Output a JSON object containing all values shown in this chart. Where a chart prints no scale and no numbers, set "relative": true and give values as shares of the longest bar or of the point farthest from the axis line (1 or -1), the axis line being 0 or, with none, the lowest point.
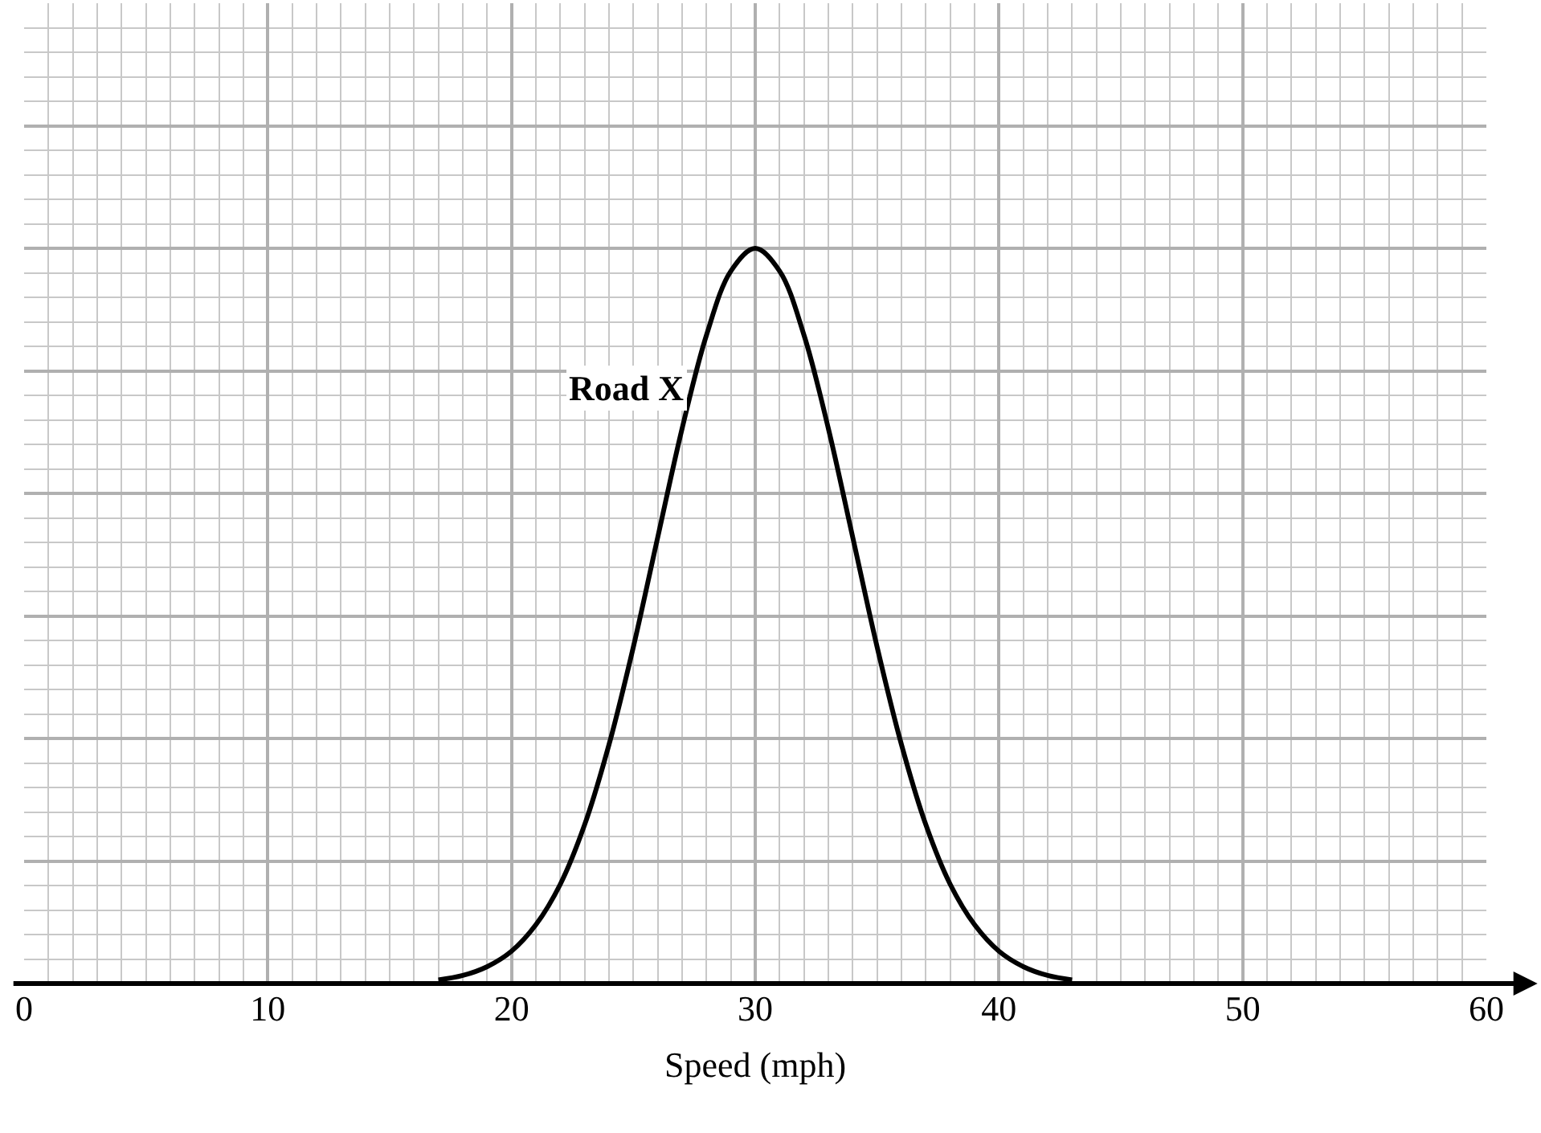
{
  "chart_data": {
    "type": "line",
    "relative": true,
    "xlabel": "Speed (mph)",
    "x": [
      17,
      18,
      19,
      20,
      21,
      22,
      23,
      24,
      25,
      26,
      27,
      28,
      29,
      30,
      31,
      32,
      33,
      34,
      35,
      36,
      37,
      38,
      39,
      40,
      41,
      42,
      43
    ],
    "xlim": [
      0,
      60
    ],
    "xticks": [
      0,
      10,
      20,
      30,
      40,
      50,
      60
    ],
    "grid": true,
    "marker": "none",
    "line_style": "solid",
    "series": [
      {
        "name": "Road X",
        "color": "#000000",
        "values": [
          0.005,
          0.011,
          0.023,
          0.044,
          0.08,
          0.135,
          0.216,
          0.325,
          0.458,
          0.607,
          0.755,
          0.882,
          0.969,
          1,
          0.969,
          0.882,
          0.755,
          0.607,
          0.458,
          0.325,
          0.216,
          0.135,
          0.08,
          0.044,
          0.023,
          0.011,
          0.005
        ]
      }
    ]
  }
}
